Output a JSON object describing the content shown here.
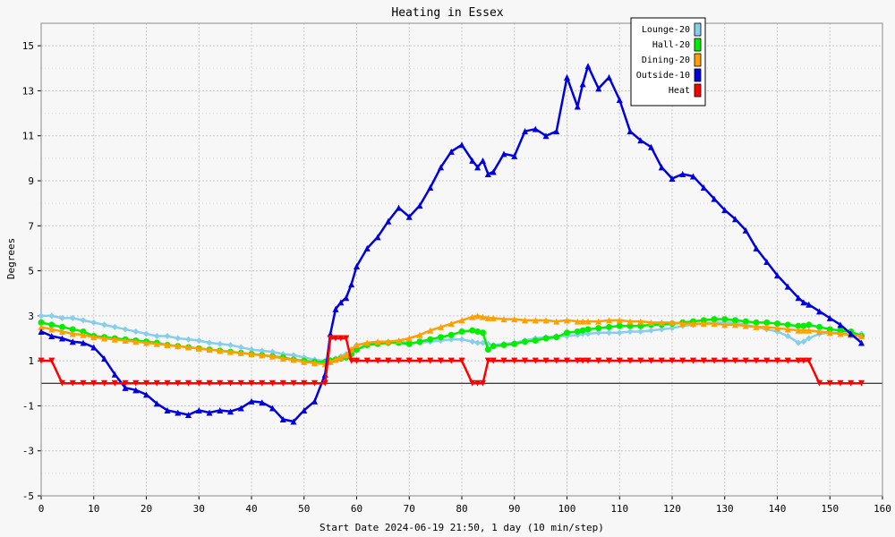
{
  "chart_data": {
    "type": "line",
    "title": "Heating in Essex",
    "xlabel": "Start Date 2024-06-19 21:50, 1 day (10 min/step)",
    "ylabel": "Degrees",
    "xlim": [
      0,
      160
    ],
    "ylim": [
      -5,
      16
    ],
    "xticks": [
      0,
      10,
      20,
      30,
      40,
      50,
      60,
      70,
      80,
      90,
      100,
      110,
      120,
      130,
      140,
      150,
      160
    ],
    "yticks": [
      -5,
      -3,
      -1,
      1,
      3,
      5,
      7,
      9,
      11,
      13,
      15
    ],
    "grid": true,
    "legend_position": "top-right",
    "x": [
      0,
      2,
      4,
      6,
      8,
      10,
      12,
      14,
      16,
      18,
      20,
      22,
      24,
      26,
      28,
      30,
      32,
      34,
      36,
      38,
      40,
      42,
      44,
      46,
      48,
      50,
      52,
      54,
      55,
      56,
      57,
      58,
      59,
      60,
      62,
      64,
      66,
      68,
      70,
      72,
      74,
      76,
      78,
      80,
      82,
      83,
      84,
      85,
      86,
      88,
      90,
      92,
      94,
      96,
      98,
      100,
      102,
      103,
      104,
      106,
      108,
      110,
      112,
      114,
      116,
      118,
      120,
      122,
      124,
      126,
      128,
      130,
      132,
      134,
      136,
      138,
      140,
      142,
      144,
      145,
      146,
      148,
      150,
      152,
      154,
      156
    ],
    "series": [
      {
        "name": "Lounge-20",
        "color": "#87ceeb",
        "marker": "diamond",
        "values": [
          3.0,
          3.0,
          2.9,
          2.9,
          2.8,
          2.7,
          2.6,
          2.5,
          2.4,
          2.3,
          2.2,
          2.1,
          2.1,
          2.0,
          1.95,
          1.9,
          1.8,
          1.75,
          1.7,
          1.6,
          1.5,
          1.45,
          1.4,
          1.3,
          1.25,
          1.15,
          1.05,
          1.0,
          1.05,
          1.1,
          1.2,
          1.3,
          1.5,
          1.7,
          1.75,
          1.8,
          1.8,
          1.85,
          1.8,
          1.8,
          1.85,
          1.9,
          1.95,
          1.95,
          1.85,
          1.8,
          1.8,
          1.75,
          1.7,
          1.75,
          1.8,
          1.9,
          2.0,
          2.05,
          2.1,
          2.1,
          2.15,
          2.2,
          2.2,
          2.25,
          2.25,
          2.25,
          2.3,
          2.3,
          2.35,
          2.4,
          2.45,
          2.55,
          2.6,
          2.65,
          2.7,
          2.7,
          2.7,
          2.6,
          2.5,
          2.4,
          2.3,
          2.1,
          1.8,
          1.85,
          2.0,
          2.2,
          2.25,
          2.25,
          2.2,
          2.2
        ]
      },
      {
        "name": "Hall-20",
        "color": "#00ee00",
        "marker": "circle",
        "values": [
          2.7,
          2.6,
          2.5,
          2.4,
          2.3,
          2.1,
          2.05,
          2.0,
          1.95,
          1.9,
          1.85,
          1.8,
          1.7,
          1.65,
          1.6,
          1.55,
          1.5,
          1.45,
          1.4,
          1.35,
          1.3,
          1.25,
          1.2,
          1.15,
          1.05,
          1.0,
          0.95,
          0.95,
          1.0,
          1.05,
          1.1,
          1.15,
          1.3,
          1.5,
          1.7,
          1.75,
          1.8,
          1.8,
          1.75,
          1.85,
          1.95,
          2.05,
          2.15,
          2.3,
          2.35,
          2.3,
          2.25,
          1.5,
          1.65,
          1.7,
          1.75,
          1.85,
          1.9,
          2.0,
          2.05,
          2.25,
          2.3,
          2.35,
          2.4,
          2.45,
          2.5,
          2.55,
          2.55,
          2.55,
          2.6,
          2.6,
          2.65,
          2.7,
          2.75,
          2.8,
          2.85,
          2.85,
          2.8,
          2.75,
          2.7,
          2.7,
          2.65,
          2.6,
          2.55,
          2.55,
          2.6,
          2.5,
          2.4,
          2.35,
          2.3,
          2.1
        ]
      },
      {
        "name": "Dining-20",
        "color": "#ffa000",
        "marker": "triangle",
        "values": [
          2.5,
          2.4,
          2.3,
          2.2,
          2.15,
          2.05,
          2.0,
          1.95,
          1.9,
          1.85,
          1.8,
          1.75,
          1.7,
          1.65,
          1.6,
          1.55,
          1.5,
          1.45,
          1.4,
          1.35,
          1.3,
          1.25,
          1.2,
          1.1,
          1.05,
          0.95,
          0.9,
          0.85,
          0.95,
          1.05,
          1.15,
          1.25,
          1.5,
          1.7,
          1.8,
          1.85,
          1.85,
          1.9,
          2.0,
          2.15,
          2.35,
          2.5,
          2.65,
          2.8,
          2.95,
          3.0,
          2.95,
          2.9,
          2.9,
          2.85,
          2.85,
          2.8,
          2.8,
          2.8,
          2.75,
          2.8,
          2.75,
          2.75,
          2.75,
          2.75,
          2.8,
          2.8,
          2.75,
          2.75,
          2.7,
          2.7,
          2.7,
          2.65,
          2.65,
          2.65,
          2.65,
          2.6,
          2.6,
          2.55,
          2.5,
          2.5,
          2.45,
          2.4,
          2.35,
          2.35,
          2.35,
          2.3,
          2.25,
          2.2,
          2.15,
          2.1
        ]
      },
      {
        "name": "Outside-10",
        "color": "#0000dd",
        "marker": "triangle",
        "values": [
          2.3,
          2.1,
          2.0,
          1.85,
          1.8,
          1.6,
          1.1,
          0.4,
          -0.2,
          -0.3,
          -0.5,
          -0.9,
          -1.2,
          -1.3,
          -1.4,
          -1.2,
          -1.3,
          -1.2,
          -1.25,
          -1.1,
          -0.8,
          -0.85,
          -1.1,
          -1.6,
          -1.7,
          -1.2,
          -0.8,
          0.4,
          2.2,
          3.3,
          3.6,
          3.8,
          4.4,
          5.2,
          6.0,
          6.5,
          7.2,
          7.8,
          7.4,
          7.9,
          8.7,
          9.6,
          10.3,
          10.6,
          9.9,
          9.6,
          9.9,
          9.3,
          9.4,
          10.2,
          10.1,
          11.2,
          11.3,
          11.0,
          11.2,
          13.6,
          12.3,
          13.3,
          14.1,
          13.1,
          13.6,
          12.6,
          11.2,
          10.8,
          10.5,
          9.6,
          9.1,
          9.3,
          9.2,
          8.7,
          8.2,
          7.7,
          7.3,
          6.8,
          6.0,
          5.4,
          4.8,
          4.3,
          3.8,
          3.6,
          3.5,
          3.2,
          2.9,
          2.6,
          2.2,
          1.8
        ]
      },
      {
        "name": "Heat",
        "color": "#ff0000",
        "marker": "triangle-down",
        "values": [
          1,
          1,
          0,
          0,
          0,
          0,
          0,
          0,
          0,
          0,
          0,
          0,
          0,
          0,
          0,
          0,
          0,
          0,
          0,
          0,
          0,
          0,
          0,
          0,
          0,
          0,
          0,
          0,
          2,
          2,
          2,
          2,
          1,
          1,
          1,
          1,
          1,
          1,
          1,
          1,
          1,
          1,
          1,
          1,
          0,
          0,
          0,
          1,
          1,
          1,
          1,
          1,
          1,
          1,
          1,
          1,
          1,
          1,
          1,
          1,
          1,
          1,
          1,
          1,
          1,
          1,
          1,
          1,
          1,
          1,
          1,
          1,
          1,
          1,
          1,
          1,
          1,
          1,
          1,
          1,
          1,
          0,
          0,
          0,
          0,
          0
        ]
      }
    ]
  }
}
